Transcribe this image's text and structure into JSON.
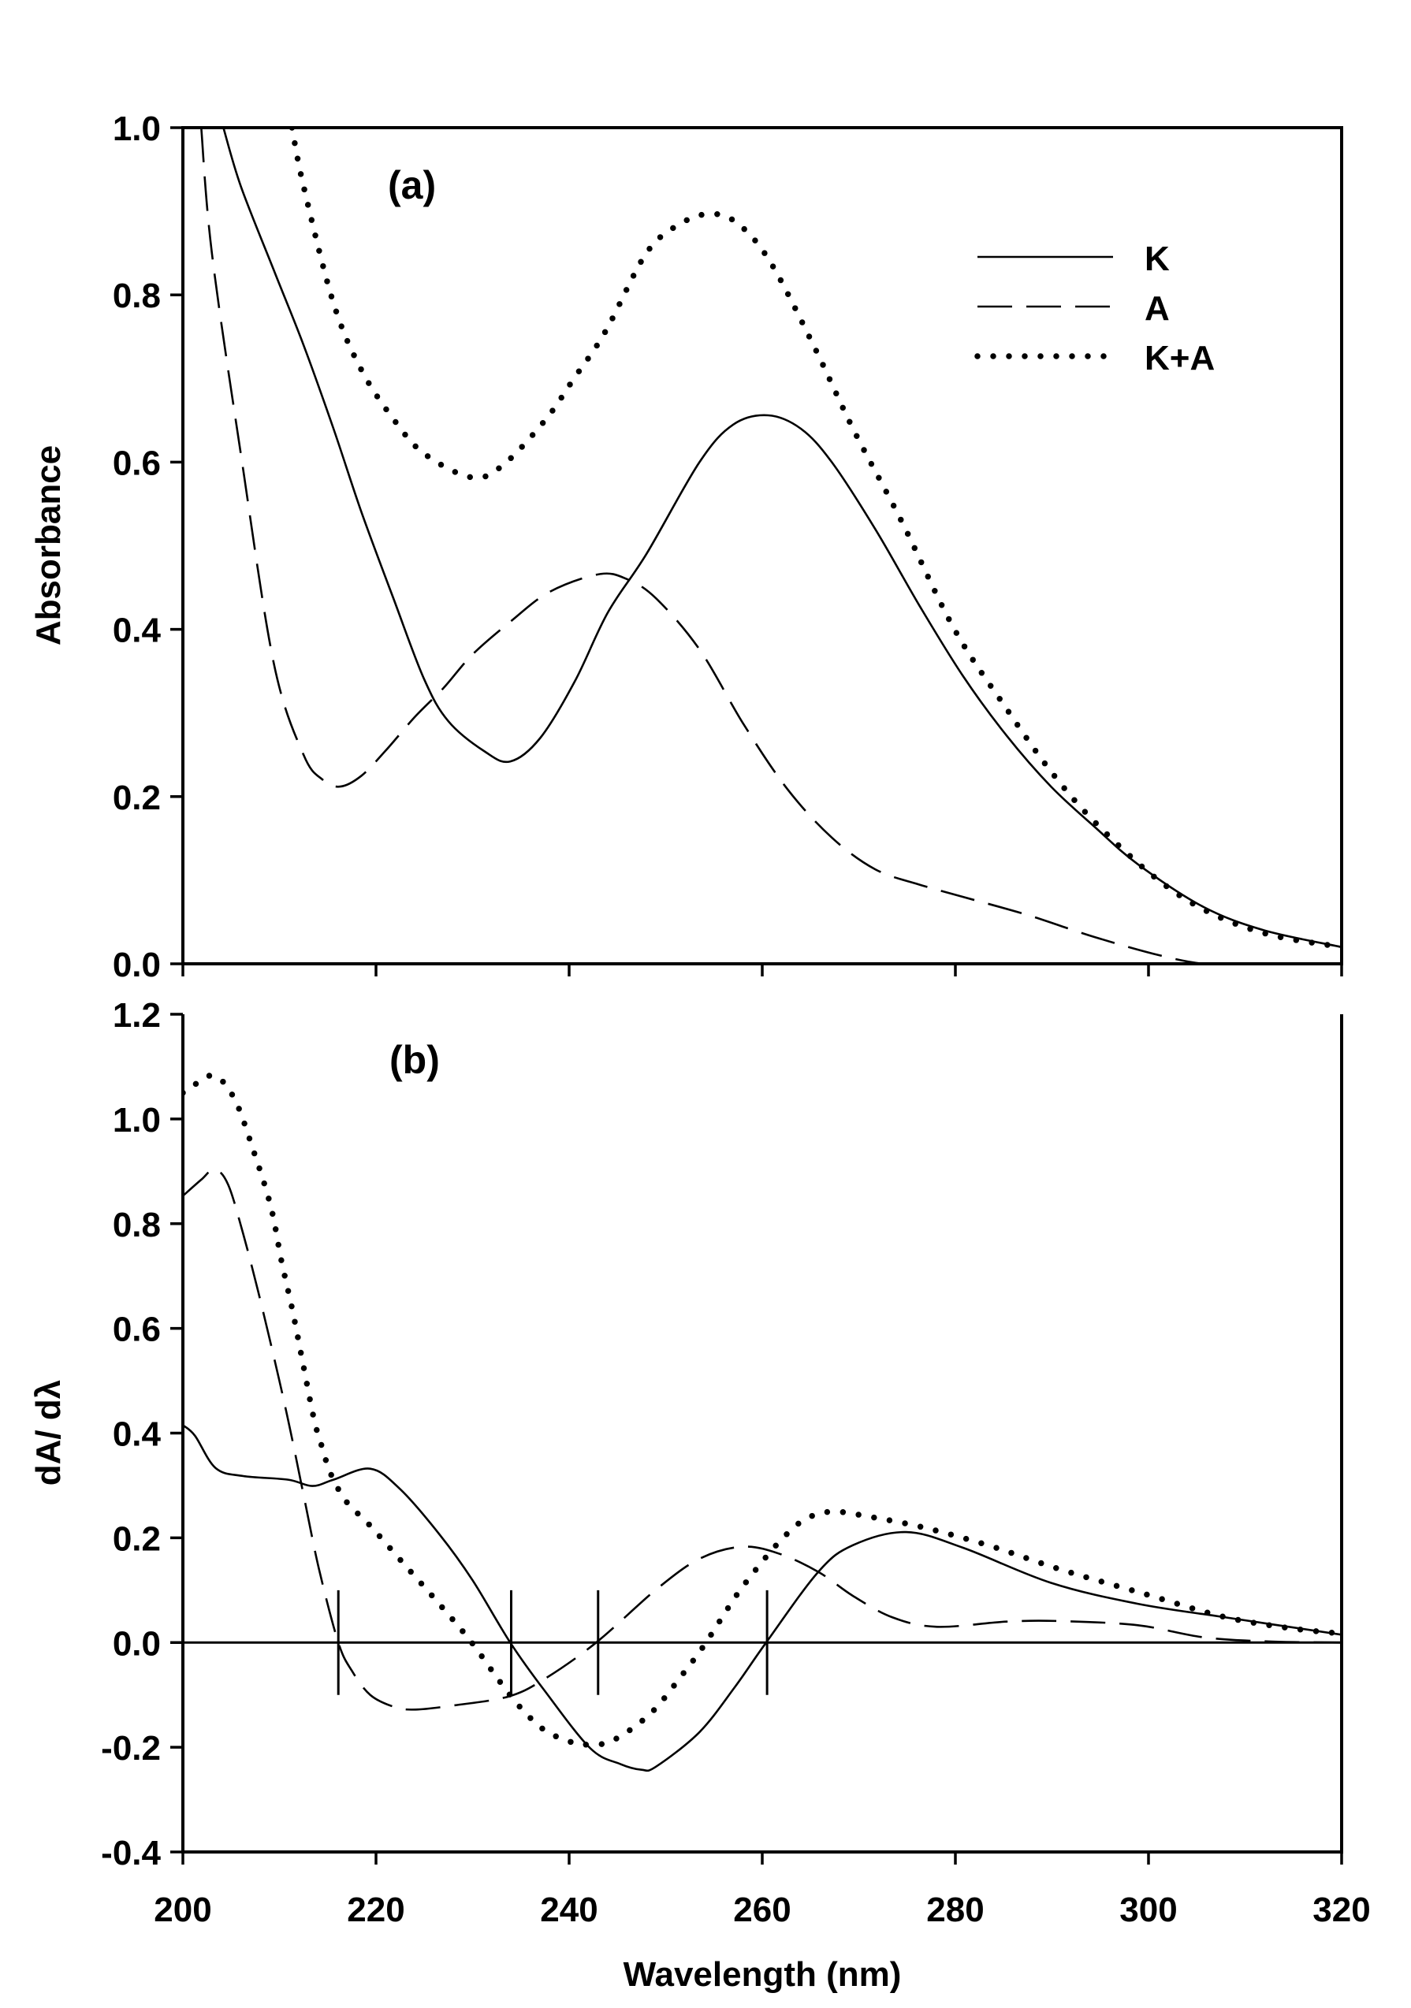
{
  "chart_data": [
    {
      "type": "line",
      "panel_label": "(a)",
      "xlabel": "",
      "ylabel": "Absorbance",
      "xlim": [
        200,
        320
      ],
      "ylim": [
        0.0,
        1.0
      ],
      "x_ticks": [
        200,
        220,
        240,
        260,
        280,
        300,
        320
      ],
      "x_tick_labels_shown": false,
      "y_ticks": [
        0.0,
        0.2,
        0.4,
        0.6,
        0.8,
        1.0
      ],
      "y_tick_labels": [
        "0.0",
        "0.2",
        "0.4",
        "0.6",
        "0.8",
        "1.0"
      ],
      "grid": false,
      "legend": {
        "placement": "top-right",
        "entries": [
          {
            "label": "K",
            "style": "solid"
          },
          {
            "label": "A",
            "style": "dashed"
          },
          {
            "label": "K+A",
            "style": "dotted"
          }
        ]
      },
      "series": [
        {
          "name": "K",
          "style": "solid",
          "x": [
            204.2,
            206,
            209.4,
            212.5,
            215.6,
            218.5,
            221.9,
            225,
            227.5,
            231.25,
            233.9,
            237,
            240.6,
            244,
            248,
            253.5,
            257,
            260.6,
            264,
            267.2,
            271.7,
            276.2,
            280.8,
            285.3,
            289.9,
            294.4,
            298.9,
            305.7,
            312,
            320
          ],
          "y": [
            1.0,
            0.93,
            0.83,
            0.74,
            0.64,
            0.54,
            0.434,
            0.34,
            0.29,
            0.254,
            0.242,
            0.27,
            0.338,
            0.42,
            0.49,
            0.6,
            0.645,
            0.656,
            0.64,
            0.6,
            0.52,
            0.43,
            0.344,
            0.273,
            0.212,
            0.164,
            0.119,
            0.068,
            0.04,
            0.02
          ]
        },
        {
          "name": "A",
          "style": "dashed",
          "x": [
            201.9,
            203,
            206,
            209.4,
            212.5,
            214.5,
            216.3,
            218.5,
            221,
            224,
            227,
            230,
            234,
            238,
            243.1,
            246,
            249,
            253.5,
            258.1,
            262.6,
            267.2,
            271.7,
            276.2,
            280.8,
            287.6,
            294.4,
            301.2,
            305.7,
            310,
            320
          ],
          "y": [
            1.0,
            0.85,
            0.61,
            0.36,
            0.25,
            0.22,
            0.212,
            0.225,
            0.255,
            0.295,
            0.33,
            0.37,
            0.41,
            0.445,
            0.466,
            0.46,
            0.437,
            0.376,
            0.286,
            0.209,
            0.151,
            0.113,
            0.095,
            0.08,
            0.058,
            0.032,
            0.01,
            0.0,
            0.0,
            0.0
          ]
        },
        {
          "name": "K+A",
          "style": "dotted",
          "x": [
            211.3,
            212.5,
            215.6,
            218.5,
            221.9,
            225,
            229.8,
            233,
            237.5,
            240.5,
            243.75,
            248,
            251.5,
            254.7,
            257.5,
            260.8,
            265.3,
            269.4,
            274.4,
            279.9,
            285.3,
            289.9,
            294.4,
            300.7,
            306.2,
            312.5,
            320
          ],
          "y": [
            1.0,
            0.93,
            0.79,
            0.71,
            0.65,
            0.61,
            0.582,
            0.595,
            0.65,
            0.7,
            0.756,
            0.85,
            0.885,
            0.897,
            0.885,
            0.84,
            0.74,
            0.64,
            0.53,
            0.4,
            0.305,
            0.23,
            0.17,
            0.103,
            0.062,
            0.035,
            0.02
          ]
        }
      ]
    },
    {
      "type": "line",
      "panel_label": "(b)",
      "xlabel": "Wavelength (nm)",
      "ylabel": "dA/ dλ",
      "xlim": [
        200,
        320
      ],
      "ylim": [
        -0.4,
        1.2
      ],
      "x_ticks": [
        200,
        220,
        240,
        260,
        280,
        300,
        320
      ],
      "x_tick_labels": [
        "200",
        "220",
        "240",
        "260",
        "280",
        "300",
        "320"
      ],
      "y_ticks": [
        -0.4,
        -0.2,
        0.0,
        0.2,
        0.4,
        0.6,
        0.8,
        1.0,
        1.2
      ],
      "y_tick_labels": [
        "-0.4",
        "-0.2",
        "0.0",
        "0.2",
        "0.4",
        "0.6",
        "0.8",
        "1.0",
        "1.2"
      ],
      "grid": false,
      "zero_line": 0.0,
      "zero_crossing_markers": {
        "x": [
          216.1,
          234.0,
          243.0,
          260.5
        ],
        "y_extent": [
          -0.1,
          0.1
        ]
      },
      "series": [
        {
          "name": "K",
          "style": "solid",
          "x": [
            200,
            201.25,
            203.4,
            206.25,
            210.9,
            213.4,
            215.6,
            219.4,
            222.5,
            226.6,
            230,
            233.9,
            237.5,
            242.2,
            245.3,
            247.5,
            249,
            253.5,
            257.2,
            260.4,
            265.8,
            269.4,
            274.9,
            280.8,
            289.9,
            298.9,
            308,
            320
          ],
          "y": [
            0.415,
            0.395,
            0.333,
            0.318,
            0.311,
            0.299,
            0.311,
            0.332,
            0.293,
            0.206,
            0.119,
            0.0,
            -0.093,
            -0.202,
            -0.232,
            -0.243,
            -0.237,
            -0.171,
            -0.084,
            0.0,
            0.135,
            0.186,
            0.211,
            0.181,
            0.114,
            0.074,
            0.048,
            0.015
          ]
        },
        {
          "name": "A",
          "style": "dashed",
          "x": [
            200,
            201.9,
            203.3,
            204.7,
            206.25,
            207.8,
            209.4,
            210.9,
            212.5,
            214.1,
            216.1,
            217.5,
            219.4,
            221.9,
            224.1,
            228.1,
            233.75,
            237.5,
            242.8,
            249,
            253.5,
            257.9,
            261.7,
            265.8,
            269.4,
            273.5,
            278.1,
            285.3,
            290.8,
            298.9,
            305.7,
            312.5,
            320
          ],
          "y": [
            0.853,
            0.884,
            0.904,
            0.874,
            0.78,
            0.67,
            0.547,
            0.425,
            0.282,
            0.14,
            0.0,
            -0.054,
            -0.1,
            -0.123,
            -0.128,
            -0.12,
            -0.103,
            -0.069,
            0.0,
            0.101,
            0.16,
            0.183,
            0.17,
            0.135,
            0.089,
            0.048,
            0.03,
            0.04,
            0.041,
            0.033,
            0.01,
            0.002,
            0.0
          ]
        },
        {
          "name": "K+A",
          "style": "dotted",
          "x": [
            200,
            200.5,
            203.1,
            205.3,
            207.3,
            209.1,
            210.2,
            211.4,
            212.5,
            213.6,
            214.4,
            215.3,
            216.9,
            219.4,
            222.8,
            226.25,
            229.7,
            232.8,
            235,
            237.5,
            240.2,
            241.6,
            244.4,
            248.4,
            251.7,
            253.8,
            255.6,
            257.4,
            259.5,
            261.8,
            264.3,
            267.2,
            271.2,
            276.9,
            283.7,
            290.8,
            299.2,
            307.6,
            314.4,
            320
          ],
          "y": [
            1.05,
            1.055,
            1.083,
            1.04,
            0.94,
            0.833,
            0.73,
            0.63,
            0.527,
            0.425,
            0.374,
            0.323,
            0.27,
            0.223,
            0.152,
            0.08,
            0.005,
            -0.074,
            -0.125,
            -0.168,
            -0.19,
            -0.195,
            -0.188,
            -0.136,
            -0.062,
            -0.01,
            0.041,
            0.092,
            0.143,
            0.193,
            0.234,
            0.25,
            0.24,
            0.219,
            0.184,
            0.14,
            0.095,
            0.05,
            0.028,
            0.017
          ]
        }
      ]
    }
  ]
}
